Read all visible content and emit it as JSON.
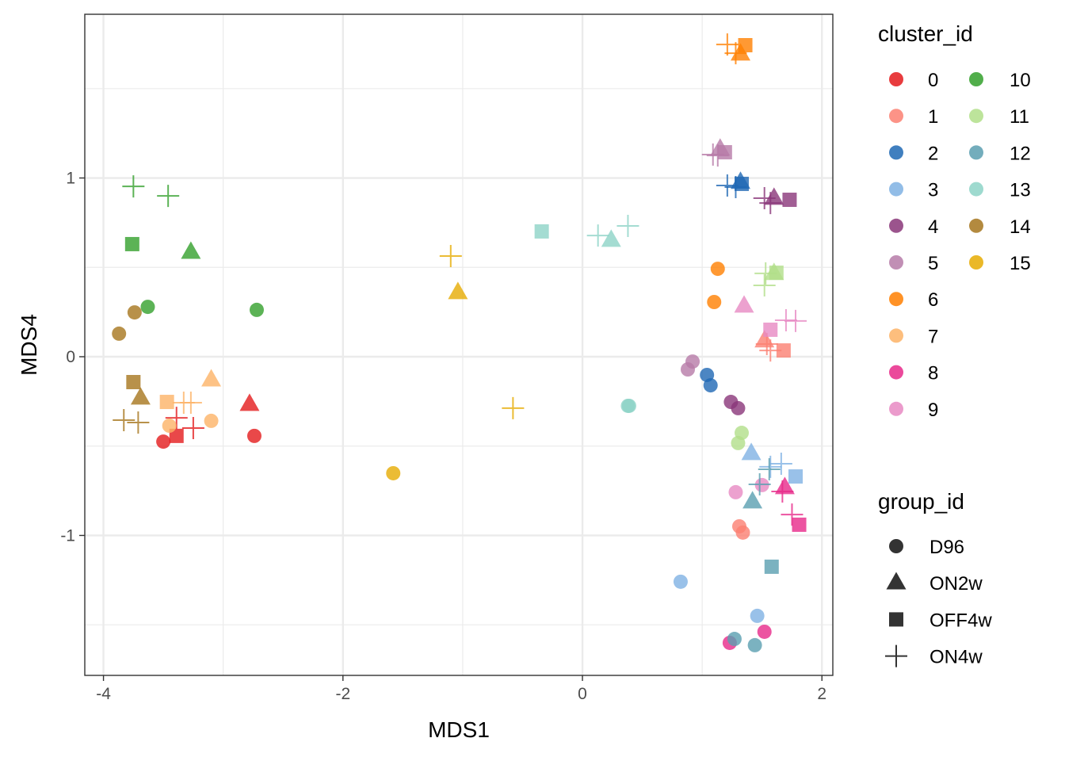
{
  "chart_data": {
    "type": "scatter",
    "title": "",
    "xlabel": "MDS1",
    "ylabel": "MDS4",
    "xlim": [
      -4.156,
      2.091
    ],
    "ylim": [
      -1.783,
      1.916
    ],
    "xticks": [
      -4,
      -2,
      0,
      2
    ],
    "yticks": [
      -1,
      0,
      1
    ],
    "xtick_labels": [
      "-4",
      "-2",
      "0",
      "2"
    ],
    "ytick_labels": [
      "-1",
      "0",
      "1"
    ],
    "grid": true,
    "legend_placement": "right",
    "legends": {
      "color": {
        "title": "cluster_id",
        "entries": [
          {
            "label": "0",
            "color": "#E41A1C"
          },
          {
            "label": "1",
            "color": "#FB8072"
          },
          {
            "label": "2",
            "color": "#1F68B4"
          },
          {
            "label": "3",
            "color": "#7FB1E3"
          },
          {
            "label": "4",
            "color": "#8A3679"
          },
          {
            "label": "5",
            "color": "#B67BA8"
          },
          {
            "label": "6",
            "color": "#FF7F00"
          },
          {
            "label": "7",
            "color": "#FDB366"
          },
          {
            "label": "8",
            "color": "#E7298A"
          },
          {
            "label": "9",
            "color": "#E78AC3"
          },
          {
            "label": "10",
            "color": "#33A02C"
          },
          {
            "label": "11",
            "color": "#B2DF8A"
          },
          {
            "label": "12",
            "color": "#5A9FB0"
          },
          {
            "label": "13",
            "color": "#8DD3C7"
          },
          {
            "label": "14",
            "color": "#A6761D"
          },
          {
            "label": "15",
            "color": "#E6AB02"
          }
        ]
      },
      "shape": {
        "title": "group_id",
        "entries": [
          {
            "label": "D96",
            "shape": "circle"
          },
          {
            "label": "ON2w",
            "shape": "triangle"
          },
          {
            "label": "OFF4w",
            "shape": "square"
          },
          {
            "label": "ON4w",
            "shape": "plus"
          }
        ]
      }
    },
    "points": [
      {
        "cluster": "0",
        "group": "D96",
        "x": -3.5,
        "y": -0.475
      },
      {
        "cluster": "0",
        "group": "D96",
        "x": -2.74,
        "y": -0.443
      },
      {
        "cluster": "0",
        "group": "ON2w",
        "x": -2.78,
        "y": -0.266
      },
      {
        "cluster": "0",
        "group": "OFF4w",
        "x": -3.39,
        "y": -0.443
      },
      {
        "cluster": "0",
        "group": "ON4w",
        "x": -3.39,
        "y": -0.342
      },
      {
        "cluster": "0",
        "group": "ON4w",
        "x": -3.25,
        "y": -0.399
      },
      {
        "cluster": "1",
        "group": "D96",
        "x": 1.31,
        "y": -0.949
      },
      {
        "cluster": "1",
        "group": "D96",
        "x": 1.34,
        "y": -0.984
      },
      {
        "cluster": "1",
        "group": "ON2w",
        "x": 1.52,
        "y": 0.089
      },
      {
        "cluster": "1",
        "group": "OFF4w",
        "x": 1.68,
        "y": 0.035
      },
      {
        "cluster": "1",
        "group": "ON4w",
        "x": 1.54,
        "y": 0.071
      },
      {
        "cluster": "1",
        "group": "ON4w",
        "x": 1.57,
        "y": 0.035
      },
      {
        "cluster": "2",
        "group": "D96",
        "x": 1.04,
        "y": -0.102
      },
      {
        "cluster": "2",
        "group": "D96",
        "x": 1.07,
        "y": -0.16
      },
      {
        "cluster": "2",
        "group": "ON2w",
        "x": 1.32,
        "y": 0.976
      },
      {
        "cluster": "2",
        "group": "OFF4w",
        "x": 1.33,
        "y": 0.967
      },
      {
        "cluster": "2",
        "group": "ON4w",
        "x": 1.21,
        "y": 0.958
      },
      {
        "cluster": "2",
        "group": "ON4w",
        "x": 1.28,
        "y": 0.949
      },
      {
        "cluster": "3",
        "group": "D96",
        "x": 0.82,
        "y": -1.259
      },
      {
        "cluster": "3",
        "group": "D96",
        "x": 1.46,
        "y": -1.45
      },
      {
        "cluster": "3",
        "group": "ON2w",
        "x": 1.41,
        "y": -0.541
      },
      {
        "cluster": "3",
        "group": "OFF4w",
        "x": 1.78,
        "y": -0.67
      },
      {
        "cluster": "3",
        "group": "ON4w",
        "x": 1.57,
        "y": -0.616
      },
      {
        "cluster": "3",
        "group": "ON4w",
        "x": 1.66,
        "y": -0.599
      },
      {
        "cluster": "4",
        "group": "D96",
        "x": 1.24,
        "y": -0.253
      },
      {
        "cluster": "4",
        "group": "D96",
        "x": 1.3,
        "y": -0.288
      },
      {
        "cluster": "4",
        "group": "ON2w",
        "x": 1.6,
        "y": 0.887
      },
      {
        "cluster": "4",
        "group": "OFF4w",
        "x": 1.73,
        "y": 0.878
      },
      {
        "cluster": "4",
        "group": "ON4w",
        "x": 1.52,
        "y": 0.887
      },
      {
        "cluster": "4",
        "group": "ON4w",
        "x": 1.57,
        "y": 0.86
      },
      {
        "cluster": "5",
        "group": "D96",
        "x": 0.92,
        "y": -0.027
      },
      {
        "cluster": "5",
        "group": "D96",
        "x": 0.88,
        "y": -0.071
      },
      {
        "cluster": "5",
        "group": "ON2w",
        "x": 1.15,
        "y": 1.162
      },
      {
        "cluster": "5",
        "group": "OFF4w",
        "x": 1.19,
        "y": 1.144
      },
      {
        "cluster": "5",
        "group": "ON4w",
        "x": 1.09,
        "y": 1.131
      },
      {
        "cluster": "5",
        "group": "ON4w",
        "x": 1.13,
        "y": 1.126
      },
      {
        "cluster": "6",
        "group": "D96",
        "x": 1.13,
        "y": 0.492
      },
      {
        "cluster": "6",
        "group": "D96",
        "x": 1.1,
        "y": 0.306
      },
      {
        "cluster": "6",
        "group": "ON2w",
        "x": 1.32,
        "y": 1.694
      },
      {
        "cluster": "6",
        "group": "OFF4w",
        "x": 1.36,
        "y": 1.743
      },
      {
        "cluster": "6",
        "group": "ON4w",
        "x": 1.21,
        "y": 1.747
      },
      {
        "cluster": "6",
        "group": "ON4w",
        "x": 1.28,
        "y": 1.698
      },
      {
        "cluster": "7",
        "group": "D96",
        "x": -3.45,
        "y": -0.386
      },
      {
        "cluster": "7",
        "group": "D96",
        "x": -3.1,
        "y": -0.359
      },
      {
        "cluster": "7",
        "group": "ON2w",
        "x": -3.1,
        "y": -0.129
      },
      {
        "cluster": "7",
        "group": "OFF4w",
        "x": -3.47,
        "y": -0.253
      },
      {
        "cluster": "7",
        "group": "ON4w",
        "x": -3.33,
        "y": -0.257
      },
      {
        "cluster": "7",
        "group": "ON4w",
        "x": -3.27,
        "y": -0.257
      },
      {
        "cluster": "8",
        "group": "D96",
        "x": 1.23,
        "y": -1.601
      },
      {
        "cluster": "8",
        "group": "D96",
        "x": 1.52,
        "y": -1.539
      },
      {
        "cluster": "8",
        "group": "ON2w",
        "x": 1.69,
        "y": -0.732
      },
      {
        "cluster": "8",
        "group": "OFF4w",
        "x": 1.81,
        "y": -0.94
      },
      {
        "cluster": "8",
        "group": "ON4w",
        "x": 1.67,
        "y": -0.754
      },
      {
        "cluster": "8",
        "group": "ON4w",
        "x": 1.75,
        "y": -0.883
      },
      {
        "cluster": "9",
        "group": "D96",
        "x": 1.28,
        "y": -0.758
      },
      {
        "cluster": "9",
        "group": "D96",
        "x": 1.5,
        "y": -0.718
      },
      {
        "cluster": "9",
        "group": "ON2w",
        "x": 1.35,
        "y": 0.284
      },
      {
        "cluster": "9",
        "group": "OFF4w",
        "x": 1.57,
        "y": 0.151
      },
      {
        "cluster": "9",
        "group": "ON4w",
        "x": 1.7,
        "y": 0.204
      },
      {
        "cluster": "9",
        "group": "ON4w",
        "x": 1.78,
        "y": 0.2
      },
      {
        "cluster": "10",
        "group": "D96",
        "x": -3.63,
        "y": 0.279
      },
      {
        "cluster": "10",
        "group": "D96",
        "x": -2.72,
        "y": 0.262
      },
      {
        "cluster": "10",
        "group": "ON2w",
        "x": -3.27,
        "y": 0.585
      },
      {
        "cluster": "10",
        "group": "OFF4w",
        "x": -3.76,
        "y": 0.63
      },
      {
        "cluster": "10",
        "group": "ON4w",
        "x": -3.75,
        "y": 0.953
      },
      {
        "cluster": "10",
        "group": "ON4w",
        "x": -3.46,
        "y": 0.9
      },
      {
        "cluster": "11",
        "group": "D96",
        "x": 1.33,
        "y": -0.426
      },
      {
        "cluster": "11",
        "group": "D96",
        "x": 1.3,
        "y": -0.483
      },
      {
        "cluster": "11",
        "group": "ON2w",
        "x": 1.6,
        "y": 0.466
      },
      {
        "cluster": "11",
        "group": "OFF4w",
        "x": 1.62,
        "y": 0.47
      },
      {
        "cluster": "11",
        "group": "ON4w",
        "x": 1.53,
        "y": 0.466
      },
      {
        "cluster": "11",
        "group": "ON4w",
        "x": 1.52,
        "y": 0.399
      },
      {
        "cluster": "12",
        "group": "D96",
        "x": 1.27,
        "y": -1.579
      },
      {
        "cluster": "12",
        "group": "D96",
        "x": 1.44,
        "y": -1.614
      },
      {
        "cluster": "12",
        "group": "ON2w",
        "x": 1.42,
        "y": -0.812
      },
      {
        "cluster": "12",
        "group": "OFF4w",
        "x": 1.58,
        "y": -1.175
      },
      {
        "cluster": "12",
        "group": "ON4w",
        "x": 1.48,
        "y": -0.714
      },
      {
        "cluster": "12",
        "group": "ON4w",
        "x": 1.56,
        "y": -0.63
      },
      {
        "cluster": "13",
        "group": "D96",
        "x": 0.38,
        "y": -0.275
      },
      {
        "cluster": "13",
        "group": "D96",
        "x": 0.39,
        "y": -0.275
      },
      {
        "cluster": "13",
        "group": "ON2w",
        "x": 0.24,
        "y": 0.652
      },
      {
        "cluster": "13",
        "group": "OFF4w",
        "x": -0.34,
        "y": 0.701
      },
      {
        "cluster": "13",
        "group": "ON4w",
        "x": 0.13,
        "y": 0.678
      },
      {
        "cluster": "13",
        "group": "ON4w",
        "x": 0.38,
        "y": 0.732
      },
      {
        "cluster": "14",
        "group": "D96",
        "x": -3.87,
        "y": 0.129
      },
      {
        "cluster": "14",
        "group": "D96",
        "x": -3.74,
        "y": 0.248
      },
      {
        "cluster": "14",
        "group": "ON2w",
        "x": -3.69,
        "y": -0.231
      },
      {
        "cluster": "14",
        "group": "OFF4w",
        "x": -3.75,
        "y": -0.142
      },
      {
        "cluster": "14",
        "group": "ON4w",
        "x": -3.83,
        "y": -0.355
      },
      {
        "cluster": "14",
        "group": "ON4w",
        "x": -3.71,
        "y": -0.368
      },
      {
        "cluster": "15",
        "group": "D96",
        "x": -1.58,
        "y": -0.652
      },
      {
        "cluster": "15",
        "group": "ON2w",
        "x": -1.04,
        "y": 0.359
      },
      {
        "cluster": "15",
        "group": "ON4w",
        "x": -1.1,
        "y": 0.563
      },
      {
        "cluster": "15",
        "group": "ON4w",
        "x": -0.58,
        "y": -0.288
      }
    ]
  }
}
